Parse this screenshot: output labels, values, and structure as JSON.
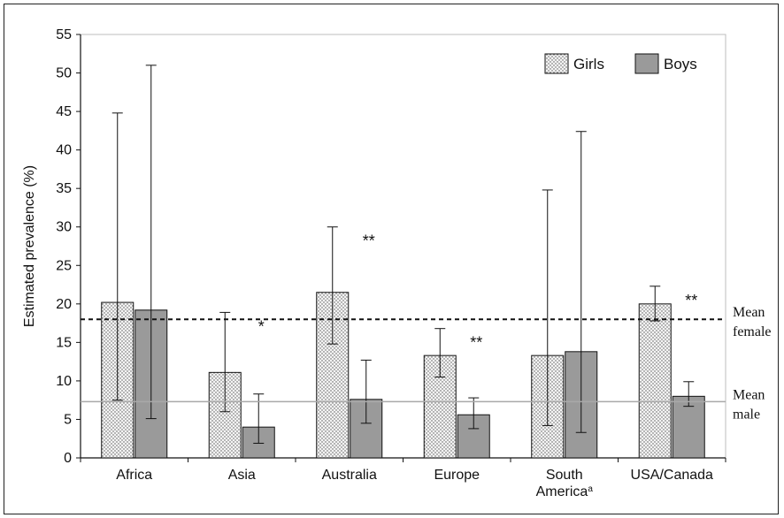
{
  "chart_data": {
    "type": "bar",
    "ylabel": "Estimated prevalence (%)",
    "ylim": [
      0,
      55
    ],
    "yticks": [
      0,
      5,
      10,
      15,
      20,
      25,
      30,
      35,
      40,
      45,
      50,
      55
    ],
    "categories": [
      {
        "lines": [
          "Africa"
        ]
      },
      {
        "lines": [
          "Asia"
        ]
      },
      {
        "lines": [
          "Australia"
        ]
      },
      {
        "lines": [
          "Europe"
        ]
      },
      {
        "lines": [
          "South",
          "America"
        ],
        "superscript": "a"
      },
      {
        "lines": [
          "USA/Canada"
        ]
      }
    ],
    "series": [
      {
        "name": "Girls",
        "values": [
          20.2,
          11.1,
          21.5,
          13.3,
          13.3,
          20.0
        ],
        "error_low": [
          7.5,
          6.0,
          14.8,
          10.5,
          4.2,
          17.8
        ],
        "error_high": [
          44.8,
          18.9,
          30.0,
          16.8,
          34.8,
          22.3
        ],
        "fill": "dotted",
        "color": "#f2f2f2"
      },
      {
        "name": "Boys",
        "values": [
          19.2,
          4.0,
          7.6,
          5.6,
          13.8,
          8.0
        ],
        "error_low": [
          5.1,
          1.9,
          4.5,
          3.8,
          3.3,
          6.7
        ],
        "error_high": [
          51.0,
          8.3,
          12.7,
          7.8,
          42.4,
          9.9
        ],
        "fill": "solid",
        "color": "#9a9a9a"
      }
    ],
    "annotations": [
      "",
      "*",
      "**",
      "**",
      "",
      "**"
    ],
    "reference_lines": [
      {
        "label_lines": [
          "Mean",
          "female"
        ],
        "value": 18.0,
        "style": "dashed",
        "color": "#111111"
      },
      {
        "label_lines": [
          "Mean",
          "male"
        ],
        "value": 7.3,
        "style": "solid",
        "color": "#a9a9a9"
      }
    ],
    "legend_position": "top-right",
    "grid": false
  }
}
